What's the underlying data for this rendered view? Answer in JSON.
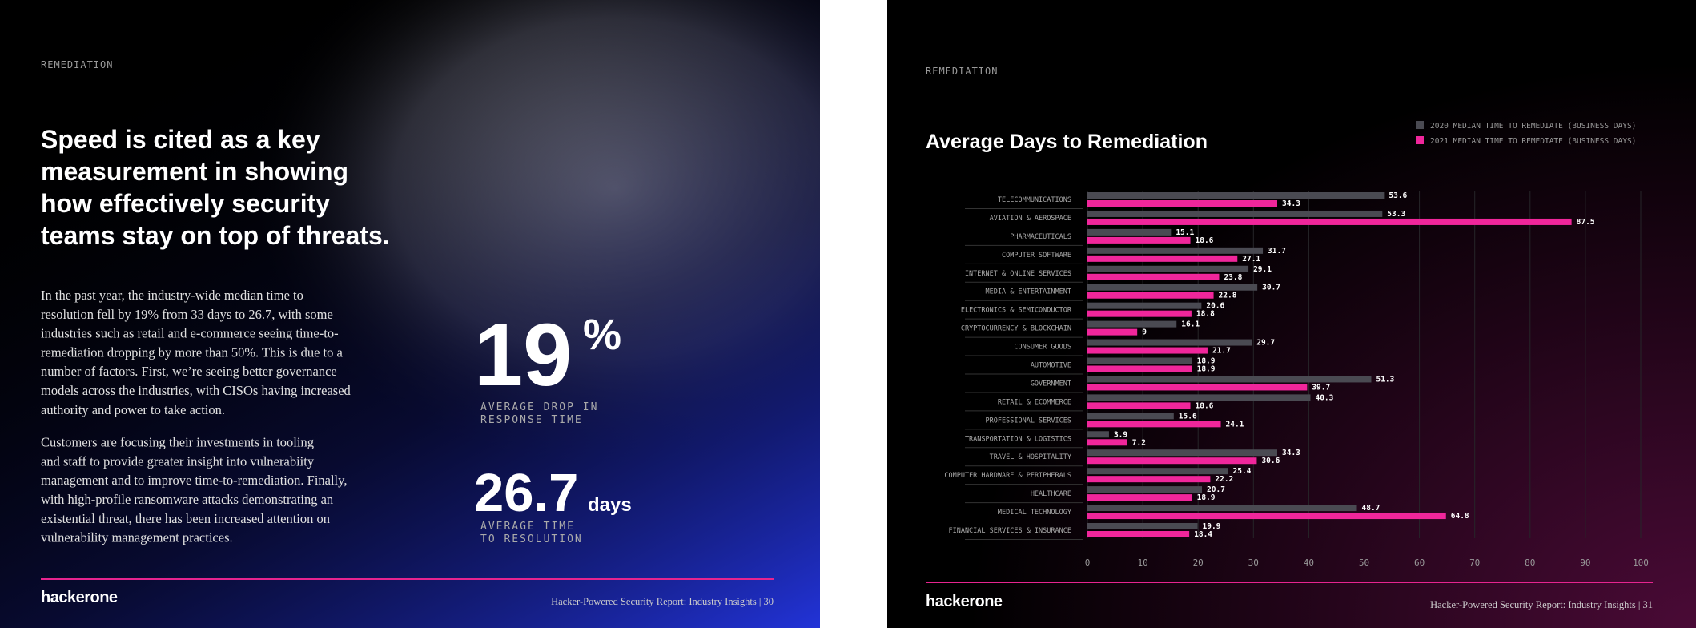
{
  "left_page": {
    "section_label": "REMEDIATION",
    "headline": [
      "Speed is cited as a key",
      "measurement in showing",
      "how effectively security",
      "teams stay on top of threats."
    ],
    "paragraphs": [
      [
        "In the past year, the industry-wide median time to",
        "resolution fell by 19% from 33 days to 26.7, with some",
        "industries such as retail and e-commerce seeing time-to-",
        "remediation dropping by more than 50%. This is due to a",
        "number of factors. First, we’re seeing better governance",
        "models across the industries, with CISOs having increased",
        "authority and power to take action."
      ],
      [
        "Customers are focusing their investments in tooling",
        "and staff to provide greater insight into vulnerabiity",
        "management and to improve time-to-remediation. Finally,",
        "with high-profile ransomware attacks demonstrating an",
        "existential threat, there has been increased attention on",
        "vulnerability management practices."
      ]
    ],
    "stats": [
      {
        "value": "19",
        "unit": "%",
        "caption": [
          "AVERAGE DROP IN",
          "RESPONSE TIME"
        ]
      },
      {
        "value": "26.7",
        "unit": "days",
        "caption": [
          "AVERAGE TIME",
          "TO RESOLUTION"
        ]
      }
    ],
    "logo": "hackerone",
    "footer": "Hacker-Powered Security Report: Industry Insights | 30"
  },
  "right_page": {
    "section_label": "REMEDIATION",
    "logo": "hackerone",
    "footer": "Hacker-Powered Security Report: Industry Insights | 31"
  },
  "chart_data": {
    "type": "bar",
    "orientation": "horizontal",
    "title": "Average Days to Remediation",
    "categories": [
      "TELECOMMUNICATIONS",
      "AVIATION & AEROSPACE",
      "PHARMACEUTICALS",
      "COMPUTER SOFTWARE",
      "INTERNET & ONLINE SERVICES",
      "MEDIA & ENTERTAINMENT",
      "ELECTRONICS & SEMICONDUCTOR",
      "CRYPTOCURRENCY & BLOCKCHAIN",
      "CONSUMER GOODS",
      "AUTOMOTIVE",
      "GOVERNMENT",
      "RETAIL & ECOMMERCE",
      "PROFESSIONAL SERVICES",
      "TRANSPORTATION & LOGISTICS",
      "TRAVEL & HOSPITALITY",
      "COMPUTER HARDWARE & PERIPHERALS",
      "HEALTHCARE",
      "MEDICAL TECHNOLOGY",
      "FINANCIAL SERVICES & INSURANCE"
    ],
    "series": [
      {
        "name": "2020 MEDIAN TIME TO REMEDIATE (BUSINESS DAYS)",
        "color": "#4a4a52",
        "values": [
          53.6,
          53.3,
          15.1,
          31.7,
          29.1,
          30.7,
          20.6,
          16.1,
          29.7,
          18.9,
          51.3,
          40.3,
          15.6,
          3.9,
          34.3,
          25.4,
          20.7,
          48.7,
          19.9
        ]
      },
      {
        "name": "2021 MEDIAN TIME TO REMEDIATE (BUSINESS DAYS)",
        "color": "#f0269b",
        "values": [
          34.3,
          87.5,
          18.6,
          27.1,
          23.8,
          22.8,
          18.8,
          9,
          21.7,
          18.9,
          39.7,
          18.6,
          24.1,
          7.2,
          30.6,
          22.2,
          18.9,
          64.8,
          18.4
        ]
      }
    ],
    "xlim": [
      0,
      100
    ],
    "xticks": [
      0,
      10,
      20,
      30,
      40,
      50,
      60,
      70,
      80,
      90,
      100
    ],
    "grid": true,
    "legend": "top-right"
  }
}
